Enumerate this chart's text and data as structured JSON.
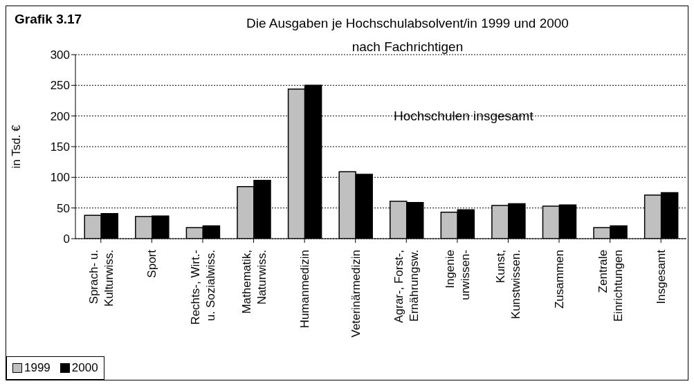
{
  "chart_data": {
    "type": "bar",
    "title": "Die Ausgaben je Hochschulabsolvent/in 1999 und 2000 nach Fachrichtigen",
    "subtitle": "Hochschulen insgesamt",
    "ylabel": "in Tsd. €",
    "annotations": [
      "Grafik 3.17"
    ],
    "categories": [
      "Sprach- u.\nKulturwiss.",
      "Sport",
      "Rechts-, Wirt.-\nu. Sozialwiss.",
      "Mathematik,\nNaturwiss.",
      "Humanmedizin",
      "Veterinärmedizin",
      "Agrar-, Forst-,\nErnährungsw.",
      "Ingenie\nurwissen-",
      "Kunst,\nKunstwissen.",
      "Zusammen",
      "Zentrale\nEinrichtungen",
      "Insgesamt"
    ],
    "series": [
      {
        "name": "1999",
        "color": "#c0c0c0",
        "values": [
          38,
          36,
          18,
          85,
          244,
          109,
          61,
          43,
          54,
          53,
          18,
          71
        ]
      },
      {
        "name": "2000",
        "color": "#000000",
        "values": [
          41,
          37,
          21,
          95,
          250,
          105,
          59,
          47,
          57,
          55,
          21,
          75
        ]
      }
    ],
    "ylim": [
      0,
      300
    ],
    "yticks": [
      0,
      50,
      100,
      150,
      200,
      250,
      300
    ],
    "grid": "y",
    "legend": "bottom left"
  }
}
